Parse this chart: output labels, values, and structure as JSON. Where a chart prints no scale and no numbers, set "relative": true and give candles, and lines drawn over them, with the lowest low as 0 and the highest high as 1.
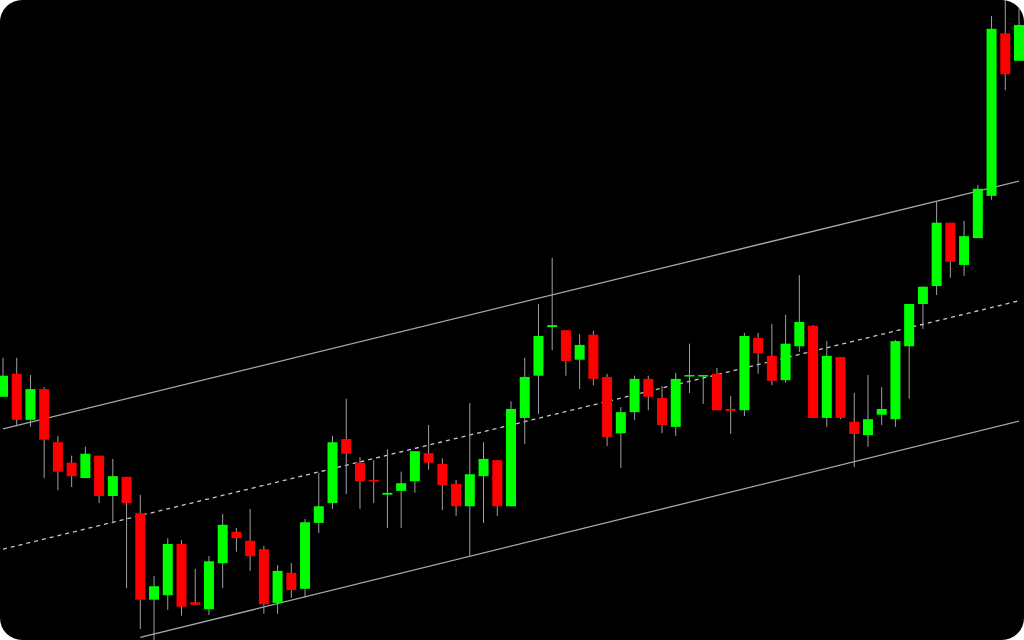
{
  "chart_data": {
    "type": "candlestick",
    "relative": true,
    "categories": [
      null,
      null,
      null,
      null,
      null,
      null,
      null,
      null,
      null,
      null,
      null,
      null,
      null,
      null,
      null,
      null,
      null,
      null,
      null,
      null,
      null,
      null,
      null,
      null,
      null,
      null,
      null,
      null,
      null,
      null,
      null,
      null,
      null,
      null,
      null,
      null,
      null,
      null,
      null,
      null,
      null,
      null,
      null,
      null,
      null,
      null,
      null,
      null,
      null,
      null,
      null,
      null,
      null,
      null,
      null,
      null,
      null,
      null,
      null,
      null,
      null,
      null,
      null,
      null,
      null,
      null,
      null,
      null,
      null,
      null,
      null,
      null,
      null,
      null,
      null
    ],
    "colors": [
      "#00ff00",
      "#ff0000",
      "#00ff00",
      "#ff0000",
      "#ff0000",
      "#ff0000",
      "#00ff00",
      "#ff0000",
      "#00ff00",
      "#ff0000",
      "#ff0000",
      "#00ff00",
      "#00ff00",
      "#ff0000",
      "#ff0000",
      "#00ff00",
      "#00ff00",
      "#ff0000",
      "#ff0000",
      "#ff0000",
      "#00ff00",
      "#ff0000",
      "#00ff00",
      "#00ff00",
      "#00ff00",
      "#ff0000",
      "#ff0000",
      "#ff0000",
      "#00ff00",
      "#00ff00",
      "#00ff00",
      "#ff0000",
      "#ff0000",
      "#ff0000",
      "#00ff00",
      "#00ff00",
      "#ff0000",
      "#00ff00",
      "#00ff00",
      "#00ff00",
      "#00ff00",
      "#ff0000",
      "#00ff00",
      "#ff0000",
      "#ff0000",
      "#00ff00",
      "#00ff00",
      "#ff0000",
      "#ff0000",
      "#00ff00",
      "#00ff00",
      "#00ff00",
      "#ff0000",
      "#ff0000",
      "#00ff00",
      "#ff0000",
      "#ff0000",
      "#00ff00",
      "#00ff00",
      "#ff0000",
      "#00ff00",
      "#ff0000",
      "#ff0000",
      "#00ff00",
      "#00ff00",
      "#00ff00",
      "#00ff00",
      "#00ff00",
      "#00ff00",
      "#ff0000",
      "#00ff00",
      "#00ff00",
      "#00ff00",
      "#ff0000",
      "#00ff00"
    ],
    "ohlc": [
      [
        0.38,
        0.441,
        0.38,
        0.413
      ],
      [
        0.416,
        0.441,
        0.334,
        0.344
      ],
      [
        0.344,
        0.414,
        0.333,
        0.392
      ],
      [
        0.392,
        0.395,
        0.253,
        0.313
      ],
      [
        0.309,
        0.319,
        0.234,
        0.263
      ],
      [
        0.277,
        0.288,
        0.239,
        0.256
      ],
      [
        0.253,
        0.302,
        0.253,
        0.291
      ],
      [
        0.288,
        0.288,
        0.214,
        0.225
      ],
      [
        0.225,
        0.283,
        0.183,
        0.256
      ],
      [
        0.255,
        0.255,
        0.081,
        0.214
      ],
      [
        0.198,
        0.227,
        0.017,
        0.063
      ],
      [
        0.063,
        0.1,
        0,
        0.084
      ],
      [
        0.07,
        0.159,
        0.047,
        0.15
      ],
      [
        0.15,
        0.156,
        0.038,
        0.052
      ],
      [
        0.059,
        0.111,
        0.055,
        0.055
      ],
      [
        0.048,
        0.131,
        0.039,
        0.123
      ],
      [
        0.12,
        0.197,
        0.081,
        0.18
      ],
      [
        0.169,
        0.175,
        0.138,
        0.159
      ],
      [
        0.155,
        0.205,
        0.108,
        0.131
      ],
      [
        0.142,
        0.147,
        0.041,
        0.056
      ],
      [
        0.058,
        0.117,
        0.041,
        0.108
      ],
      [
        0.105,
        0.12,
        0.066,
        0.078
      ],
      [
        0.08,
        0.189,
        0.066,
        0.184
      ],
      [
        0.183,
        0.261,
        0.167,
        0.209
      ],
      [
        0.214,
        0.319,
        0.205,
        0.309
      ],
      [
        0.314,
        0.377,
        0.228,
        0.291
      ],
      [
        0.277,
        0.286,
        0.205,
        0.248
      ],
      [
        0.25,
        0.281,
        0.214,
        0.248
      ],
      [
        0.227,
        0.298,
        0.175,
        0.23
      ],
      [
        0.233,
        0.263,
        0.175,
        0.245
      ],
      [
        0.248,
        0.295,
        0.23,
        0.295
      ],
      [
        0.292,
        0.336,
        0.266,
        0.277
      ],
      [
        0.275,
        0.284,
        0.203,
        0.242
      ],
      [
        0.244,
        0.25,
        0.194,
        0.209
      ],
      [
        0.209,
        0.37,
        0.13,
        0.259
      ],
      [
        0.256,
        0.309,
        0.183,
        0.283
      ],
      [
        0.281,
        0.281,
        0.194,
        0.209
      ],
      [
        0.209,
        0.373,
        0.209,
        0.361
      ],
      [
        0.347,
        0.441,
        0.306,
        0.411
      ],
      [
        0.413,
        0.525,
        0.353,
        0.475
      ],
      [
        0.489,
        0.597,
        0.453,
        0.492
      ],
      [
        0.484,
        0.484,
        0.413,
        0.436
      ],
      [
        0.438,
        0.478,
        0.392,
        0.461
      ],
      [
        0.477,
        0.483,
        0.398,
        0.408
      ],
      [
        0.411,
        0.416,
        0.303,
        0.317
      ],
      [
        0.323,
        0.364,
        0.269,
        0.356
      ],
      [
        0.356,
        0.413,
        0.344,
        0.408
      ],
      [
        0.408,
        0.413,
        0.359,
        0.38
      ],
      [
        0.378,
        0.397,
        0.323,
        0.336
      ],
      [
        0.333,
        0.417,
        0.319,
        0.408
      ],
      [
        0.413,
        0.463,
        0.386,
        0.414
      ],
      [
        0.413,
        0.414,
        0.369,
        0.414
      ],
      [
        0.416,
        0.425,
        0.359,
        0.359
      ],
      [
        0.361,
        0.381,
        0.322,
        0.358
      ],
      [
        0.359,
        0.48,
        0.35,
        0.475
      ],
      [
        0.472,
        0.48,
        0.416,
        0.448
      ],
      [
        0.444,
        0.494,
        0.398,
        0.405
      ],
      [
        0.406,
        0.508,
        0.402,
        0.463
      ],
      [
        0.459,
        0.57,
        0.45,
        0.497
      ],
      [
        0.491,
        0.492,
        0.347,
        0.347
      ],
      [
        0.347,
        0.467,
        0.333,
        0.444
      ],
      [
        0.442,
        0.442,
        0.345,
        0.347
      ],
      [
        0.341,
        0.386,
        0.27,
        0.322
      ],
      [
        0.32,
        0.414,
        0.302,
        0.345
      ],
      [
        0.352,
        0.395,
        0.336,
        0.361
      ],
      [
        0.345,
        0.469,
        0.333,
        0.467
      ],
      [
        0.459,
        0.525,
        0.377,
        0.525
      ],
      [
        0.525,
        0.552,
        0.486,
        0.552
      ],
      [
        0.553,
        0.686,
        0.539,
        0.652
      ],
      [
        0.652,
        0.652,
        0.566,
        0.591
      ],
      [
        0.586,
        0.655,
        0.569,
        0.631
      ],
      [
        0.628,
        0.711,
        0.628,
        0.705
      ],
      [
        0.694,
        0.975,
        0.688,
        0.955
      ],
      [
        0.948,
        1,
        0.859,
        0.884
      ],
      [
        0.905,
        0.988,
        0.905,
        0.961
      ]
    ],
    "series": [
      {
        "type": "line",
        "color": "#a8a8a8",
        "line_style": "solid",
        "values": [
          0.33,
          null,
          null,
          null,
          null,
          null,
          null,
          null,
          null,
          null,
          null,
          null,
          null,
          null,
          null,
          null,
          null,
          null,
          null,
          null,
          null,
          null,
          null,
          null,
          null,
          null,
          null,
          null,
          null,
          null,
          null,
          null,
          null,
          null,
          null,
          null,
          null,
          null,
          null,
          null,
          null,
          null,
          null,
          null,
          null,
          null,
          null,
          null,
          null,
          null,
          null,
          null,
          null,
          null,
          null,
          null,
          null,
          null,
          null,
          null,
          null,
          null,
          null,
          null,
          null,
          null,
          null,
          null,
          null,
          null,
          null,
          null,
          null,
          null,
          0.717
        ]
      },
      {
        "type": "line",
        "color": "#c8c8c8",
        "line_style": "dashed",
        "values": [
          0.142,
          null,
          null,
          null,
          null,
          null,
          null,
          null,
          null,
          null,
          null,
          null,
          null,
          null,
          null,
          null,
          null,
          null,
          null,
          null,
          null,
          null,
          null,
          null,
          null,
          null,
          null,
          null,
          null,
          null,
          null,
          null,
          null,
          null,
          null,
          null,
          null,
          null,
          null,
          null,
          null,
          null,
          null,
          null,
          null,
          null,
          null,
          null,
          null,
          null,
          null,
          null,
          null,
          null,
          null,
          null,
          null,
          null,
          null,
          null,
          null,
          null,
          null,
          null,
          null,
          null,
          null,
          null,
          null,
          null,
          null,
          null,
          null,
          null,
          0.53
        ]
      },
      {
        "type": "line",
        "color": "#a8a8a8",
        "line_style": "solid",
        "values": [
          null,
          null,
          null,
          null,
          null,
          null,
          null,
          null,
          null,
          null,
          0.004,
          null,
          null,
          null,
          null,
          null,
          null,
          null,
          null,
          null,
          null,
          null,
          null,
          null,
          null,
          null,
          null,
          null,
          null,
          null,
          null,
          null,
          null,
          null,
          null,
          null,
          null,
          null,
          null,
          null,
          null,
          null,
          null,
          null,
          null,
          null,
          null,
          null,
          null,
          null,
          null,
          null,
          null,
          null,
          null,
          null,
          null,
          null,
          null,
          null,
          null,
          null,
          null,
          null,
          null,
          null,
          null,
          null,
          null,
          null,
          null,
          null,
          null,
          null,
          0.342
        ]
      }
    ]
  }
}
